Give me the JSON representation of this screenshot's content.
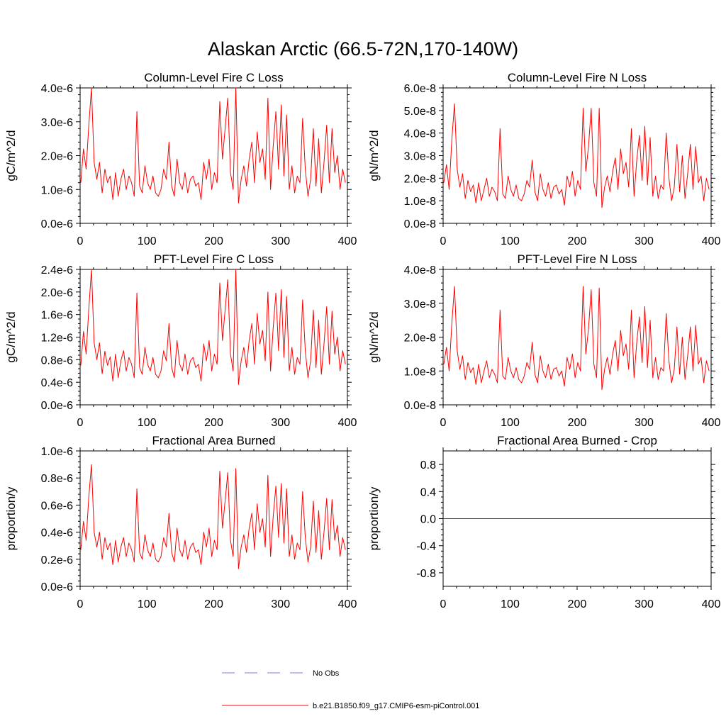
{
  "title": "Alaskan Arctic (66.5-72N,170-140W)",
  "colors": {
    "series": "#ff0000",
    "obs": "#7b7bd6",
    "axis": "#000000"
  },
  "legend": {
    "entries": [
      {
        "label": "No Obs",
        "style": "dashed",
        "color": "#7b7bd6"
      },
      {
        "label": "b.e21.B1850.f09_g17.CMIP6-esm-piControl.001",
        "style": "solid",
        "color": "#ff0000"
      }
    ]
  },
  "chart_data": [
    {
      "type": "line",
      "title": "Column-Level Fire C Loss",
      "ylabel": "gC/m^2/d",
      "xlim": [
        0,
        400
      ],
      "xticks": [
        0,
        100,
        200,
        300,
        400
      ],
      "xtick_labels": [
        "0",
        "100",
        "200",
        "300",
        "400"
      ],
      "ylim": [
        0,
        4e-06
      ],
      "yticks": [
        0,
        1e-06,
        2e-06,
        3e-06,
        4e-06
      ],
      "ytick_labels": [
        "0.0e-6",
        "1.0e-6",
        "2.0e-6",
        "3.0e-6",
        "4.0e-6"
      ],
      "series": [
        {
          "name": "b.e21.B1850.f09_g17.CMIP6-esm-piControl.001",
          "x_start": 1,
          "x_step": 4,
          "values": [
            1.2e-06,
            2.2e-06,
            1.6e-06,
            2.9e-06,
            4e-06,
            1.8e-06,
            1.3e-06,
            1.8e-06,
            9e-07,
            1.6e-06,
            1.2e-06,
            1.4e-06,
            7e-07,
            1.5e-06,
            8e-07,
            1.3e-06,
            1.6e-06,
            1e-06,
            1.4e-06,
            1.2e-06,
            8e-07,
            3.3e-06,
            1.1e-06,
            9e-07,
            1.7e-06,
            1.2e-06,
            1e-06,
            1.4e-06,
            9e-07,
            8e-07,
            1e-06,
            1.6e-06,
            1.3e-06,
            2.4e-06,
            1.1e-06,
            8e-07,
            1.9e-06,
            1.2e-06,
            1e-06,
            1.5e-06,
            9e-07,
            1.3e-06,
            1.4e-06,
            1.1e-06,
            1.2e-06,
            7e-07,
            1.8e-06,
            1.3e-06,
            1.9e-06,
            1e-06,
            1.5e-06,
            1.2e-06,
            3.6e-06,
            1.9e-06,
            2.8e-06,
            3.7e-06,
            1.5e-06,
            1e-06,
            4e-06,
            6e-07,
            1.3e-06,
            1.7e-06,
            1.1e-06,
            1.9e-06,
            2.4e-06,
            1.2e-06,
            2.7e-06,
            1.8e-06,
            2.2e-06,
            1.3e-06,
            3.7e-06,
            1e-06,
            2.3e-06,
            3.3e-06,
            1.6e-06,
            3.5e-06,
            1.4e-06,
            3.2e-06,
            1e-06,
            1.7e-06,
            9e-07,
            1.4e-06,
            1.2e-06,
            3.1e-06,
            1.6e-06,
            8e-07,
            1.3e-06,
            2.8e-06,
            1.1e-06,
            2.5e-06,
            9e-07,
            1.8e-06,
            2.9e-06,
            1.2e-06,
            2.8e-06,
            1.5e-06,
            2e-06,
            1e-06,
            1.6e-06,
            1.2e-06
          ]
        }
      ]
    },
    {
      "type": "line",
      "title": "Column-Level Fire N Loss",
      "ylabel": "gN/m^2/d",
      "xlim": [
        0,
        400
      ],
      "xticks": [
        0,
        100,
        200,
        300,
        400
      ],
      "xtick_labels": [
        "0",
        "100",
        "200",
        "300",
        "400"
      ],
      "ylim": [
        0,
        6e-08
      ],
      "yticks": [
        0,
        1e-08,
        2e-08,
        3e-08,
        4e-08,
        5e-08,
        6e-08
      ],
      "ytick_labels": [
        "0.0e-8",
        "1.0e-8",
        "2.0e-8",
        "3.0e-8",
        "4.0e-8",
        "5.0e-8",
        "6.0e-8"
      ],
      "series": [
        {
          "name": "b.e21.B1850.f09_g17.CMIP6-esm-piControl.001",
          "x_start": 1,
          "x_step": 4,
          "values": [
            1.8e-08,
            2.6e-08,
            1.5e-08,
            3.7e-08,
            5.3e-08,
            2.4e-08,
            1.6e-08,
            2.2e-08,
            1.1e-08,
            1.9e-08,
            1.4e-08,
            1.7e-08,
            9e-09,
            1.8e-08,
            1e-08,
            1.5e-08,
            2e-08,
            1.2e-08,
            1.6e-08,
            1.4e-08,
            1e-08,
            4.2e-08,
            1.3e-08,
            1.1e-08,
            2.1e-08,
            1.5e-08,
            1.2e-08,
            1.7e-08,
            1.1e-08,
            1e-08,
            1.3e-08,
            1.9e-08,
            1.6e-08,
            2.8e-08,
            1.4e-08,
            1e-08,
            2.2e-08,
            1.5e-08,
            1.2e-08,
            1.8e-08,
            1.1e-08,
            1.6e-08,
            1.7e-08,
            1.3e-08,
            1.5e-08,
            8e-09,
            2.1e-08,
            1.6e-08,
            2.3e-08,
            1.2e-08,
            1.9e-08,
            1.5e-08,
            5.1e-08,
            2.3e-08,
            3.4e-08,
            5.1e-08,
            1.8e-08,
            1.2e-08,
            5.1e-08,
            7e-09,
            1.6e-08,
            2.1e-08,
            1.4e-08,
            2.3e-08,
            2.9e-08,
            1.5e-08,
            3.3e-08,
            2.2e-08,
            2.7e-08,
            1.6e-08,
            4.2e-08,
            1.2e-08,
            2.8e-08,
            3.9e-08,
            1.9e-08,
            4.3e-08,
            1.7e-08,
            3.8e-08,
            1.2e-08,
            2.1e-08,
            1.1e-08,
            1.7e-08,
            1.5e-08,
            4e-08,
            2e-08,
            1e-08,
            1.6e-08,
            3.5e-08,
            1.4e-08,
            3e-08,
            1.1e-08,
            2.2e-08,
            3.5e-08,
            1.5e-08,
            3.4e-08,
            1.8e-08,
            2.1e-08,
            1e-08,
            2e-08,
            1.5e-08
          ]
        }
      ]
    },
    {
      "type": "line",
      "title": "PFT-Level Fire C Loss",
      "ylabel": "gC/m^2/d",
      "xlim": [
        0,
        400
      ],
      "xticks": [
        0,
        100,
        200,
        300,
        400
      ],
      "xtick_labels": [
        "0",
        "100",
        "200",
        "300",
        "400"
      ],
      "ylim": [
        0,
        2.4e-06
      ],
      "yticks": [
        0,
        4e-07,
        8e-07,
        1.2e-06,
        1.6e-06,
        2e-06,
        2.4e-06
      ],
      "ytick_labels": [
        "0.0e-6",
        "0.4e-6",
        "0.8e-6",
        "1.2e-6",
        "1.6e-6",
        "2.0e-6",
        "2.4e-6"
      ],
      "series": [
        {
          "name": "b.e21.B1850.f09_g17.CMIP6-esm-piControl.001",
          "x_start": 1,
          "x_step": 4,
          "values": [
            7e-07,
            1.3e-06,
            9e-07,
            1.7e-06,
            2.4e-06,
            1.1e-06,
            8e-07,
            1.1e-06,
            5.5e-07,
            9.5e-07,
            7e-07,
            8.5e-07,
            4.2e-07,
            9e-07,
            4.8e-07,
            7.8e-07,
            9.6e-07,
            6e-07,
            8.4e-07,
            7.2e-07,
            4.8e-07,
            1.98e-06,
            6.6e-07,
            5.4e-07,
            1.02e-06,
            7.2e-07,
            6e-07,
            8.4e-07,
            5.4e-07,
            4.8e-07,
            6e-07,
            9.6e-07,
            7.8e-07,
            1.44e-06,
            6.6e-07,
            4.8e-07,
            1.14e-06,
            7.2e-07,
            6e-07,
            9e-07,
            5.4e-07,
            7.8e-07,
            8.4e-07,
            6.6e-07,
            7.2e-07,
            4.2e-07,
            1.08e-06,
            7.8e-07,
            1.14e-06,
            6e-07,
            9e-07,
            7.2e-07,
            2.16e-06,
            1.14e-06,
            1.68e-06,
            2.22e-06,
            9e-07,
            6e-07,
            2.4e-06,
            3.6e-07,
            7.8e-07,
            1.02e-06,
            6.6e-07,
            1.14e-06,
            1.44e-06,
            7.2e-07,
            1.62e-06,
            1.08e-06,
            1.32e-06,
            7.8e-07,
            2e-06,
            6e-07,
            1.38e-06,
            1.98e-06,
            9.6e-07,
            2.04e-06,
            8.4e-07,
            1.92e-06,
            6e-07,
            1.02e-06,
            5.4e-07,
            8.4e-07,
            7.2e-07,
            1.86e-06,
            9.6e-07,
            4.8e-07,
            7.8e-07,
            1.68e-06,
            6.6e-07,
            1.5e-06,
            5.4e-07,
            1.08e-06,
            1.74e-06,
            7.2e-07,
            1.66e-06,
            9e-07,
            1.2e-06,
            6e-07,
            9.6e-07,
            7.2e-07
          ]
        }
      ]
    },
    {
      "type": "line",
      "title": "PFT-Level Fire N Loss",
      "ylabel": "gN/m^2/d",
      "xlim": [
        0,
        400
      ],
      "xticks": [
        0,
        100,
        200,
        300,
        400
      ],
      "xtick_labels": [
        "0",
        "100",
        "200",
        "300",
        "400"
      ],
      "ylim": [
        0,
        4e-08
      ],
      "yticks": [
        0,
        1e-08,
        2e-08,
        3e-08,
        4e-08
      ],
      "ytick_labels": [
        "0.0e-8",
        "1.0e-8",
        "2.0e-8",
        "3.0e-8",
        "4.0e-8"
      ],
      "series": [
        {
          "name": "b.e21.B1850.f09_g17.CMIP6-esm-piControl.001",
          "x_start": 1,
          "x_step": 4,
          "values": [
            1.2e-08,
            1.7e-08,
            1e-08,
            2.4e-08,
            3.5e-08,
            1.6e-08,
            1.05e-08,
            1.45e-08,
            7.5e-09,
            1.25e-08,
            9.5e-09,
            1.1e-08,
            6e-09,
            1.2e-08,
            6.5e-09,
            1e-08,
            1.3e-08,
            8e-09,
            1.05e-08,
            9e-09,
            6.5e-09,
            2.8e-08,
            8.5e-09,
            7.5e-09,
            1.4e-08,
            1e-08,
            8e-09,
            1.1e-08,
            7.5e-09,
            6.5e-09,
            8.5e-09,
            1.25e-08,
            1.05e-08,
            1.85e-08,
            9e-09,
            6.5e-09,
            1.45e-08,
            1e-08,
            8e-09,
            1.2e-08,
            7.5e-09,
            1.05e-08,
            1.1e-08,
            8.5e-09,
            1e-08,
            5.5e-09,
            1.4e-08,
            1.05e-08,
            1.5e-08,
            8e-09,
            1.25e-08,
            1e-08,
            3.5e-08,
            1.5e-08,
            2.25e-08,
            3.4e-08,
            1.2e-08,
            8e-09,
            3.45e-08,
            4.5e-09,
            1.05e-08,
            1.4e-08,
            9e-09,
            1.5e-08,
            1.9e-08,
            1e-08,
            2.2e-08,
            1.45e-08,
            1.8e-08,
            1.05e-08,
            2.8e-08,
            8e-09,
            1.85e-08,
            2.6e-08,
            1.25e-08,
            2.9e-08,
            1.1e-08,
            2.5e-08,
            8e-09,
            1.4e-08,
            7.5e-09,
            1.1e-08,
            1e-08,
            2.7e-08,
            1.3e-08,
            6.5e-09,
            1.05e-08,
            2.3e-08,
            9e-09,
            2e-08,
            7.5e-09,
            1.45e-08,
            2.3e-08,
            1e-08,
            2.35e-08,
            1.2e-08,
            1.4e-08,
            6.5e-09,
            1.3e-08,
            1e-08
          ]
        }
      ]
    },
    {
      "type": "line",
      "title": "Fractional Area Burned",
      "ylabel": "proportion/y",
      "xlim": [
        0,
        400
      ],
      "xticks": [
        0,
        100,
        200,
        300,
        400
      ],
      "xtick_labels": [
        "0",
        "100",
        "200",
        "300",
        "400"
      ],
      "ylim": [
        0,
        1e-06
      ],
      "yticks": [
        0,
        2e-07,
        4e-07,
        6e-07,
        8e-07,
        1e-06
      ],
      "ytick_labels": [
        "0.0e-6",
        "0.2e-6",
        "0.4e-6",
        "0.6e-6",
        "0.8e-6",
        "1.0e-6"
      ],
      "series": [
        {
          "name": "b.e21.B1850.f09_g17.CMIP6-esm-piControl.001",
          "x_start": 1,
          "x_step": 4,
          "values": [
            2.7e-07,
            4.8e-07,
            3.4e-07,
            6.6e-07,
            9e-07,
            4e-07,
            2.9e-07,
            4e-07,
            2e-07,
            3.6e-07,
            2.7e-07,
            3.2e-07,
            1.6e-07,
            3.4e-07,
            1.8e-07,
            2.9e-07,
            3.6e-07,
            2.2e-07,
            3.2e-07,
            2.7e-07,
            1.8e-07,
            7.2e-07,
            2.5e-07,
            2e-07,
            3.8e-07,
            2.7e-07,
            2.2e-07,
            3.2e-07,
            2e-07,
            1.8e-07,
            2.2e-07,
            3.6e-07,
            2.9e-07,
            5.4e-07,
            2.5e-07,
            1.8e-07,
            4.3e-07,
            2.7e-07,
            2.2e-07,
            3.4e-07,
            2e-07,
            2.9e-07,
            3.2e-07,
            2.5e-07,
            2.7e-07,
            1.6e-07,
            4e-07,
            2.9e-07,
            4.3e-07,
            2.2e-07,
            3.4e-07,
            2.7e-07,
            8.5e-07,
            4.3e-07,
            6.3e-07,
            8.4e-07,
            3.4e-07,
            2.2e-07,
            8.7e-07,
            1.3e-07,
            2.9e-07,
            3.8e-07,
            2.5e-07,
            4.3e-07,
            5.4e-07,
            2.7e-07,
            6.1e-07,
            4e-07,
            5e-07,
            2.9e-07,
            8.2e-07,
            2.2e-07,
            5.2e-07,
            7.4e-07,
            3.6e-07,
            7.6e-07,
            3.2e-07,
            7.2e-07,
            2.2e-07,
            3.8e-07,
            2e-07,
            3.2e-07,
            2.7e-07,
            7e-07,
            3.6e-07,
            1.8e-07,
            2.9e-07,
            6.3e-07,
            2.5e-07,
            5.6e-07,
            2e-07,
            4e-07,
            6.5e-07,
            2.7e-07,
            6.4e-07,
            3.4e-07,
            4.5e-07,
            2.2e-07,
            3.6e-07,
            2.7e-07
          ]
        }
      ]
    },
    {
      "type": "line",
      "title": "Fractional Area Burned - Crop",
      "ylabel": "proportion/y",
      "xlim": [
        0,
        400
      ],
      "xticks": [
        0,
        100,
        200,
        300,
        400
      ],
      "xtick_labels": [
        "0",
        "100",
        "200",
        "300",
        "400"
      ],
      "ylim": [
        -1.0,
        1.0
      ],
      "yticks": [
        -0.8,
        -0.4,
        0.0,
        0.4,
        0.8
      ],
      "ytick_labels": [
        "-0.8",
        "-0.4",
        "0.0",
        "0.4",
        "0.8"
      ],
      "series": [
        {
          "name": "b.e21.B1850.f09_g17.CMIP6-esm-piControl.001",
          "x": [
            0,
            400
          ],
          "values": [
            0,
            0
          ]
        }
      ]
    }
  ]
}
